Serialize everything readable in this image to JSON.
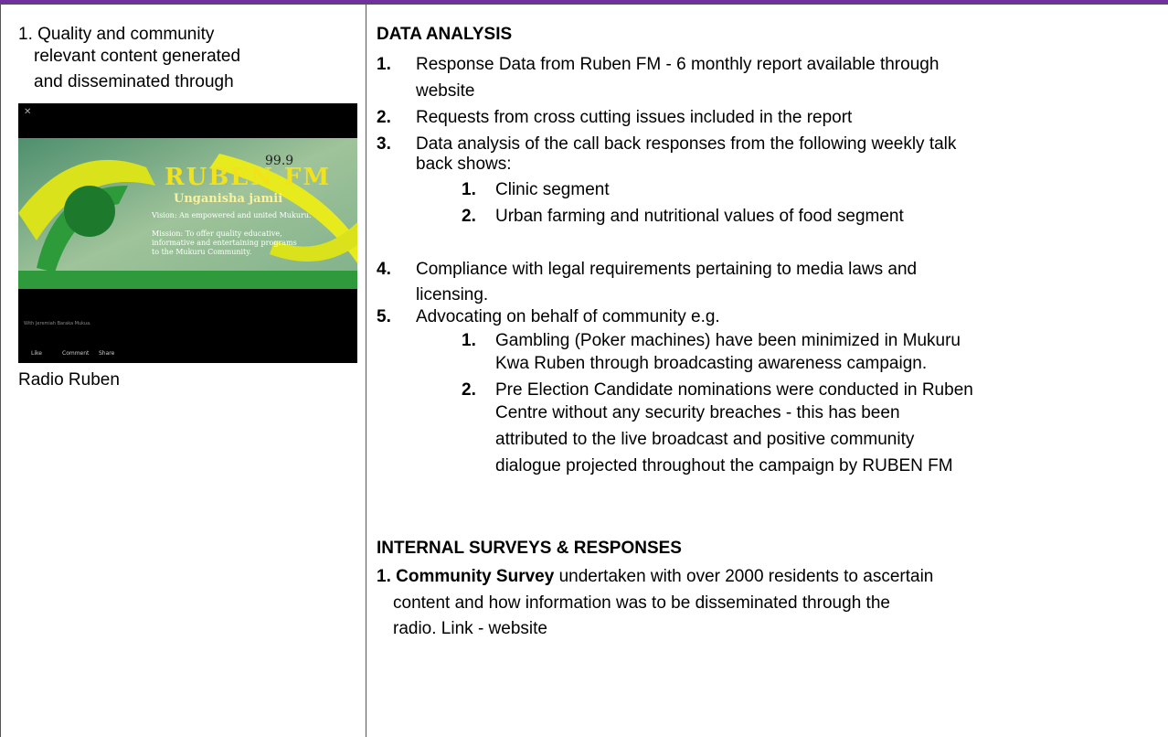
{
  "left": {
    "item": [
      "1. Quality and community",
      "relevant content generated",
      "and disseminated through"
    ],
    "image": {
      "frequency": "99.9",
      "station": "RUBEN FM",
      "slogan": "Unganisha jamii",
      "vision": "Vision: An empowered and united Mukuru.",
      "mission": [
        "Mission: To offer quality educative,",
        "informative and entertaining programs",
        "to the Mukuru Community."
      ],
      "post_caption": "With Jeremiah Baraka Mukua.",
      "actions": [
        "Like",
        "Comment",
        "Share"
      ]
    },
    "caption": "Radio Ruben"
  },
  "right": {
    "data_analysis": {
      "heading": "DATA ANALYSIS",
      "items": [
        {
          "number": "1.",
          "lines": [
            "Response Data from Ruben FM - 6 monthly report available through",
            "website"
          ]
        },
        {
          "number": "2.",
          "lines": [
            "Requests from cross cutting issues included in the report"
          ]
        },
        {
          "number": "3.",
          "lines": [
            "Data analysis of the call back responses from the following weekly talk",
            "back shows:"
          ],
          "subitems": [
            {
              "number": "1.",
              "lines": [
                "Clinic segment"
              ]
            },
            {
              "number": "2.",
              "lines": [
                "Urban farming and nutritional values of food segment"
              ]
            }
          ]
        },
        {
          "number": "4.",
          "lines": [
            "Compliance with legal requirements pertaining to media laws and",
            "licensing."
          ]
        },
        {
          "number": "5.",
          "lines": [
            "Advocating on behalf of community e.g."
          ],
          "subitems": [
            {
              "number": "1.",
              "lines": [
                "Gambling (Poker machines) have been minimized in Mukuru",
                "Kwa Ruben through broadcasting awareness campaign."
              ]
            },
            {
              "number": "2.",
              "lines": [
                "Pre Election Candidate nominations were conducted in Ruben",
                "Centre without any security breaches - this has been",
                "attributed to the live broadcast and positive community",
                "dialogue projected throughout the campaign by RUBEN FM"
              ]
            }
          ]
        }
      ]
    },
    "surveys": {
      "heading": "INTERNAL SURVEYS & RESPONSES",
      "items": [
        {
          "number": "1.",
          "title": "Community Survey",
          "lines": [
            "undertaken with over 2000 residents to ascertain",
            "content and how information was to be disseminated through the",
            "radio.  Link - website"
          ]
        }
      ]
    }
  }
}
